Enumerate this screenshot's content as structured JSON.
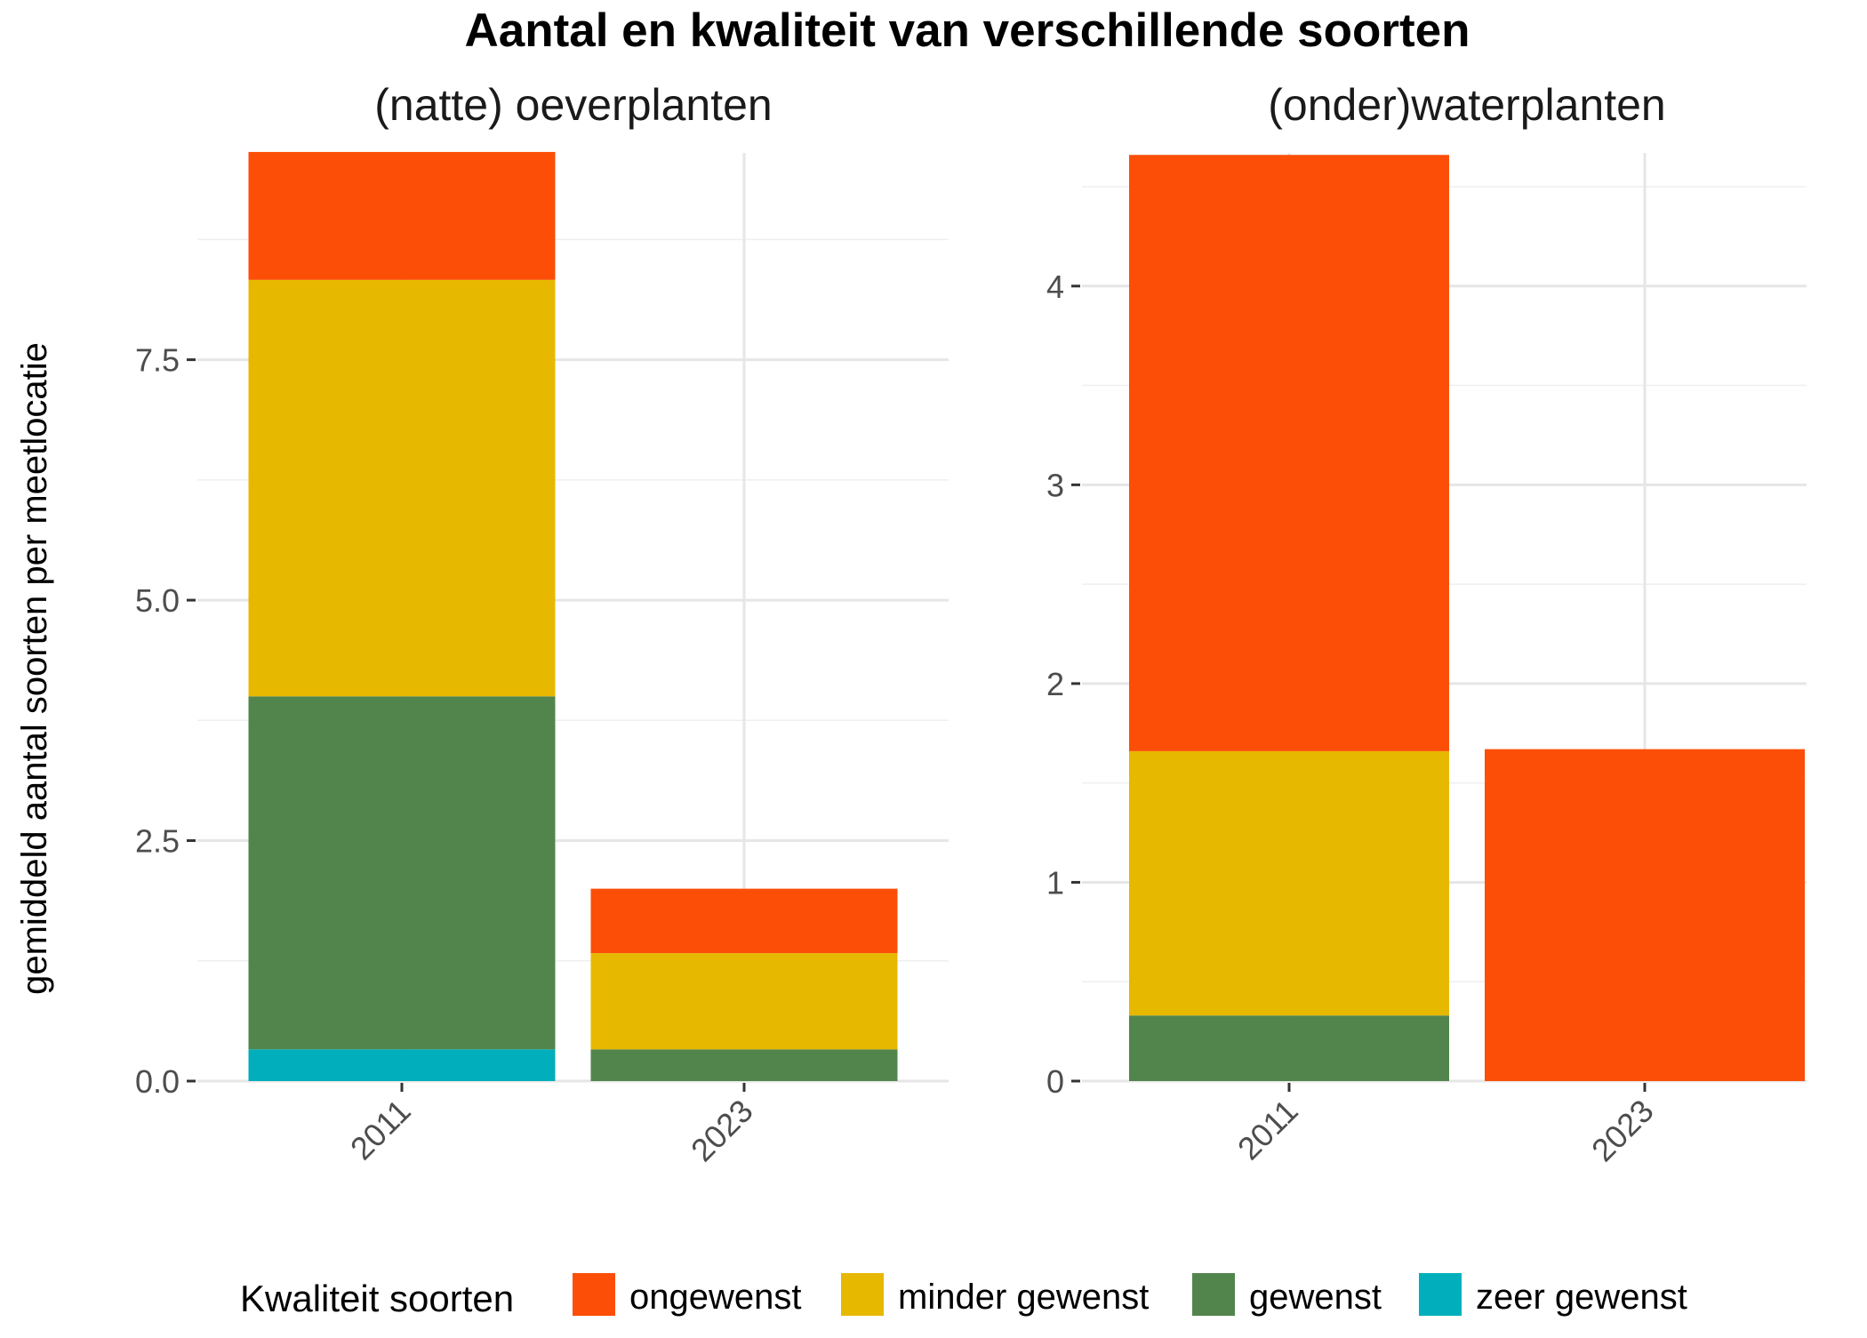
{
  "title": "Aantal en kwaliteit van verschillende soorten",
  "ylabel": "gemiddeld aantal soorten per meetlocatie",
  "legend": {
    "title": "Kwaliteit soorten",
    "position": "bottom",
    "items": [
      {
        "label": "ongewenst",
        "color": "#FC4E07"
      },
      {
        "label": "minder gewenst",
        "color": "#E7B800"
      },
      {
        "label": "gewenst",
        "color": "#52854C"
      },
      {
        "label": "zeer gewenst",
        "color": "#00AFBB"
      }
    ]
  },
  "chart_data": [
    {
      "type": "bar",
      "stacked": true,
      "title": "(natte) oeverplanten",
      "categories": [
        "2011",
        "2023"
      ],
      "ylim": [
        0,
        9.65
      ],
      "yticks": [
        0,
        2.5,
        5,
        7.5
      ],
      "ytick_labels": [
        "0.0",
        "2.5",
        "5.0",
        "7.5"
      ],
      "grid": true,
      "series": [
        {
          "name": "zeer gewenst",
          "values": [
            0.33,
            0
          ]
        },
        {
          "name": "gewenst",
          "values": [
            3.67,
            0.33
          ]
        },
        {
          "name": "minder gewenst",
          "values": [
            4.33,
            1.0
          ]
        },
        {
          "name": "ongewenst",
          "values": [
            1.33,
            0.67
          ]
        }
      ]
    },
    {
      "type": "bar",
      "stacked": true,
      "title": "(onder)waterplanten",
      "categories": [
        "2011",
        "2023"
      ],
      "ylim": [
        0,
        4.67
      ],
      "yticks": [
        0,
        1,
        2,
        3,
        4
      ],
      "ytick_labels": [
        "0",
        "1",
        "2",
        "3",
        "4"
      ],
      "grid": true,
      "series": [
        {
          "name": "zeer gewenst",
          "values": [
            0,
            0
          ]
        },
        {
          "name": "gewenst",
          "values": [
            0.33,
            0
          ]
        },
        {
          "name": "minder gewenst",
          "values": [
            1.33,
            0
          ]
        },
        {
          "name": "ongewenst",
          "values": [
            3.0,
            1.67
          ]
        }
      ]
    }
  ]
}
